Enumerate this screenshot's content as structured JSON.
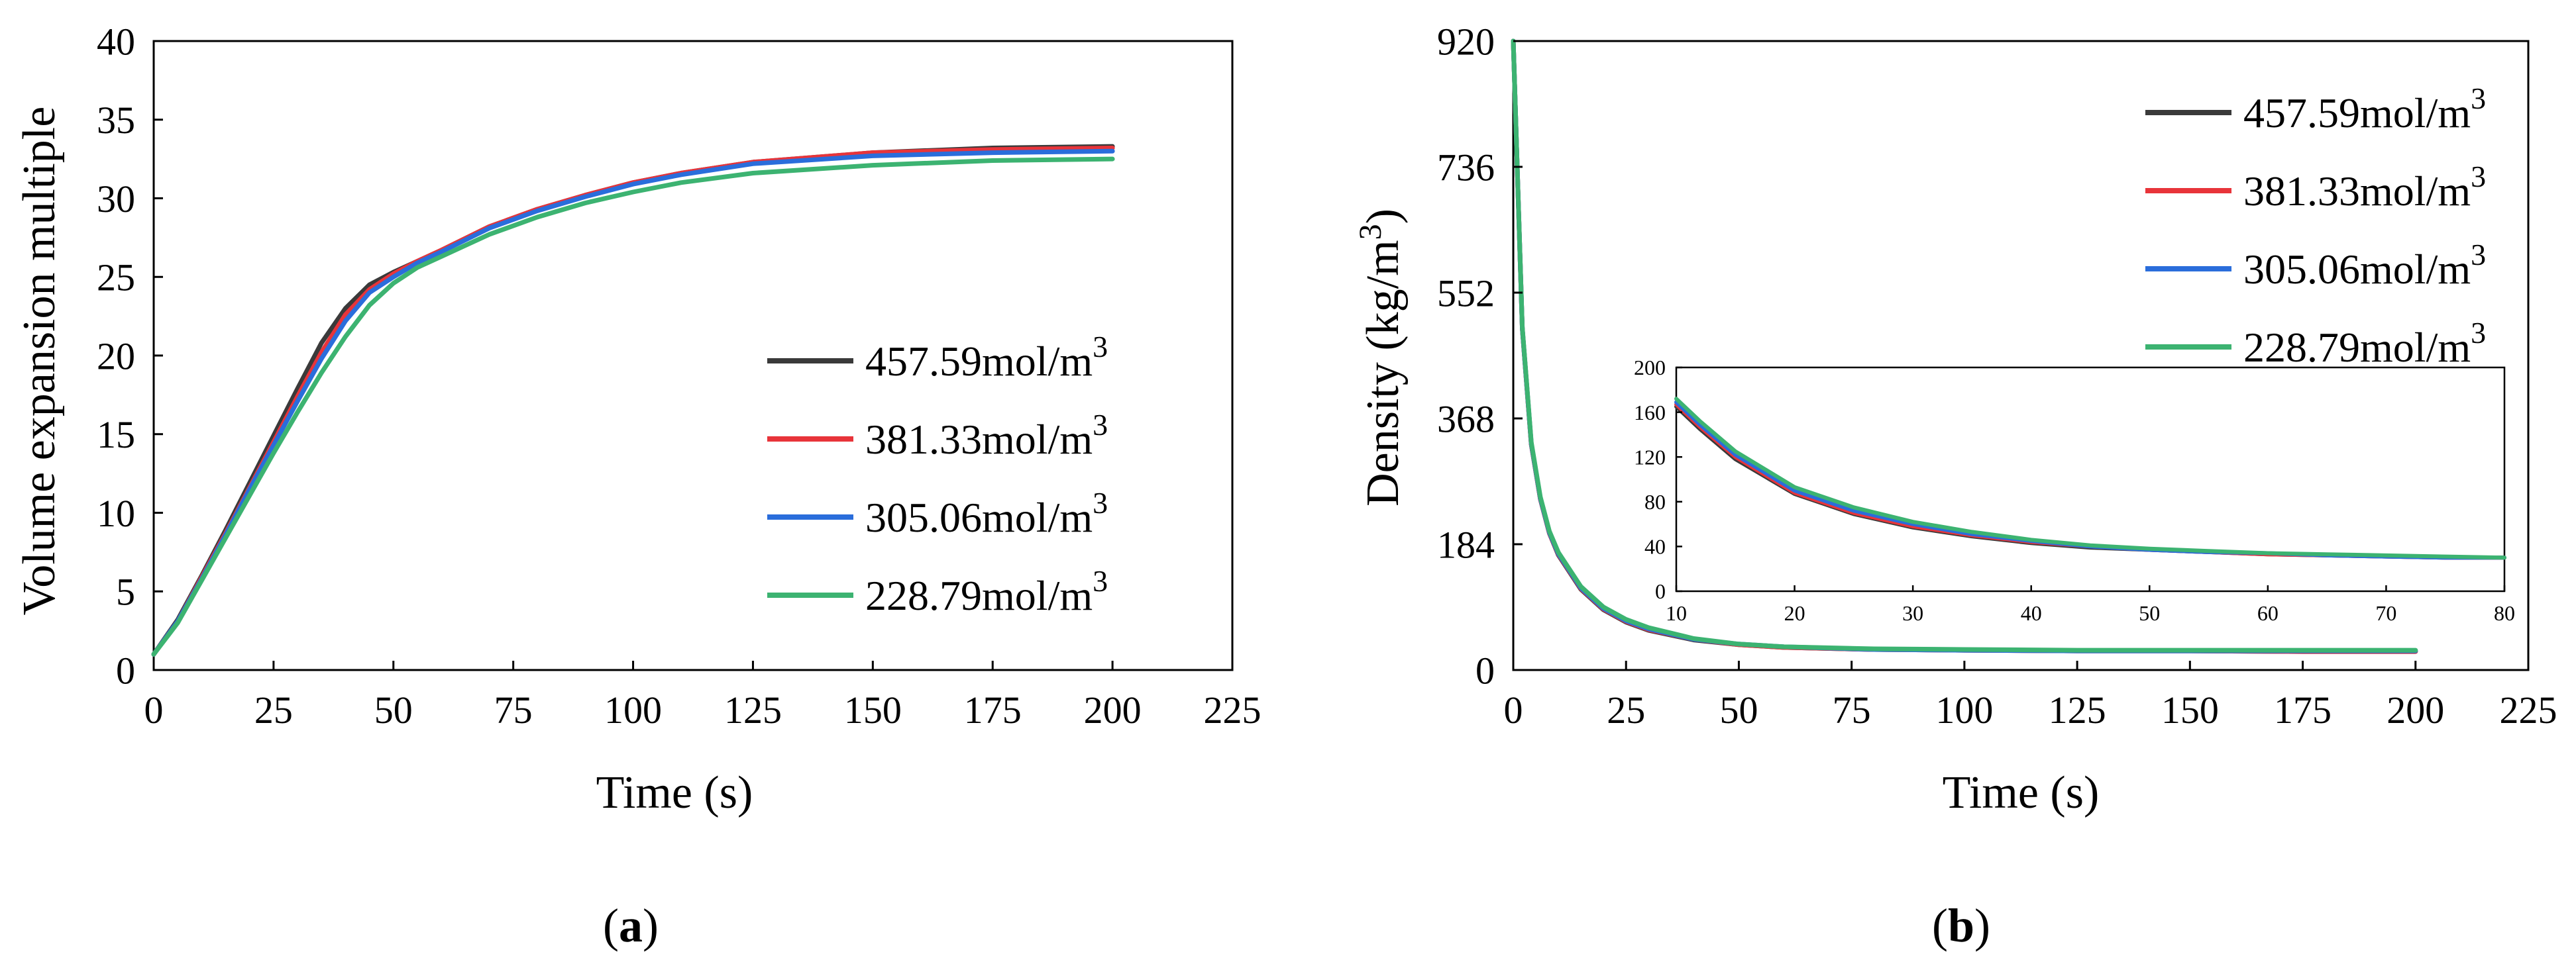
{
  "colors": {
    "457.59mol/m3": "#3a3a3a",
    "381.33mol/m3": "#e8343a",
    "305.06mol/m3": "#2a6ddb",
    "228.79mol/m3": "#3cb371"
  },
  "chart_data": [
    {
      "id": "a",
      "type": "line",
      "panel_label": "a",
      "title": "",
      "xlabel": "Time (s)",
      "ylabel": "Volume expansion multiple",
      "xlim": [
        0,
        225
      ],
      "ylim": [
        0,
        40
      ],
      "xticks": [
        0,
        25,
        50,
        75,
        100,
        125,
        150,
        175,
        200,
        225
      ],
      "yticks": [
        0,
        5,
        10,
        15,
        20,
        25,
        30,
        35,
        40
      ],
      "legend_position": "right-middle",
      "x": [
        0,
        5,
        10,
        15,
        20,
        25,
        30,
        35,
        40,
        45,
        50,
        55,
        60,
        70,
        80,
        90,
        100,
        110,
        125,
        150,
        175,
        200
      ],
      "series": [
        {
          "name": "457.59mol/m",
          "sup": "3",
          "color_key": "457.59mol/m3",
          "values": [
            1.0,
            3.2,
            6.0,
            8.9,
            11.9,
            14.9,
            17.9,
            20.8,
            23.0,
            24.5,
            25.3,
            26.0,
            26.7,
            28.2,
            29.3,
            30.2,
            31.0,
            31.6,
            32.3,
            32.9,
            33.2,
            33.3
          ]
        },
        {
          "name": "381.33mol/m",
          "sup": "3",
          "color_key": "381.33mol/m3",
          "values": [
            1.0,
            3.1,
            5.9,
            8.7,
            11.6,
            14.5,
            17.4,
            20.2,
            22.6,
            24.2,
            25.2,
            26.0,
            26.7,
            28.2,
            29.3,
            30.2,
            31.0,
            31.6,
            32.3,
            32.9,
            33.1,
            33.2
          ]
        },
        {
          "name": "305.06mol/m",
          "sup": "3",
          "color_key": "305.06mol/m3",
          "values": [
            1.0,
            3.1,
            5.8,
            8.6,
            11.5,
            14.3,
            17.1,
            19.8,
            22.2,
            24.0,
            25.0,
            25.9,
            26.6,
            28.1,
            29.2,
            30.1,
            30.9,
            31.5,
            32.2,
            32.7,
            32.9,
            33.0
          ]
        },
        {
          "name": "228.79mol/m",
          "sup": "3",
          "color_key": "228.79mol/m3",
          "values": [
            1.0,
            3.0,
            5.7,
            8.4,
            11.1,
            13.8,
            16.4,
            18.9,
            21.2,
            23.2,
            24.6,
            25.6,
            26.3,
            27.7,
            28.8,
            29.7,
            30.4,
            31.0,
            31.6,
            32.1,
            32.4,
            32.5
          ]
        }
      ]
    },
    {
      "id": "b",
      "type": "line",
      "panel_label": "b",
      "title": "",
      "xlabel": "Time (s)",
      "ylabel": "Density (kg/m",
      "ylabel_sup": "3",
      "ylabel_end": ")",
      "xlim": [
        0,
        225
      ],
      "ylim": [
        0,
        920
      ],
      "xticks": [
        0,
        25,
        50,
        75,
        100,
        125,
        150,
        175,
        200,
        225
      ],
      "yticks": [
        0,
        184,
        368,
        552,
        736,
        920
      ],
      "legend_position": "top-right",
      "x": [
        0,
        2,
        4,
        6,
        8,
        10,
        15,
        20,
        25,
        30,
        40,
        50,
        60,
        80,
        100,
        125,
        150,
        175,
        200
      ],
      "series": [
        {
          "name": "457.59mol/m",
          "sup": "3",
          "color_key": "457.59mol/m3",
          "values": [
            920,
            500,
            330,
            250,
            200,
            168,
            118,
            88,
            70,
            58,
            44,
            37,
            33,
            30,
            29,
            28,
            28,
            27,
            27
          ]
        },
        {
          "name": "381.33mol/m",
          "sup": "3",
          "color_key": "381.33mol/m3",
          "values": [
            920,
            500,
            330,
            250,
            200,
            169,
            119,
            89,
            71,
            59,
            45,
            37,
            33,
            30,
            29,
            28,
            28,
            27,
            27
          ]
        },
        {
          "name": "305.06mol/m",
          "sup": "3",
          "color_key": "305.06mol/m3",
          "values": [
            920,
            500,
            331,
            251,
            201,
            170,
            120,
            90,
            72,
            60,
            45,
            38,
            34,
            30,
            29,
            28,
            28,
            28,
            28
          ]
        },
        {
          "name": "228.79mol/m",
          "sup": "3",
          "color_key": "228.79mol/m3",
          "values": [
            920,
            502,
            333,
            253,
            203,
            172,
            122,
            92,
            74,
            62,
            46,
            38,
            34,
            31,
            30,
            29,
            29,
            29,
            29
          ]
        }
      ],
      "inset": {
        "xlim": [
          10,
          80
        ],
        "ylim": [
          0,
          200
        ],
        "xticks": [
          10,
          20,
          30,
          40,
          50,
          60,
          70,
          80
        ],
        "yticks": [
          0,
          40,
          80,
          120,
          160,
          200
        ],
        "x": [
          10,
          12,
          15,
          20,
          25,
          30,
          35,
          40,
          45,
          50,
          55,
          60,
          65,
          70,
          75,
          80
        ],
        "series": [
          {
            "color_key": "457.59mol/m3",
            "values": [
              165,
              145,
              118,
              87,
              69,
              57,
              49,
              43,
              39,
              37,
              35,
              33,
              32,
              31,
              30,
              30
            ]
          },
          {
            "color_key": "381.33mol/m3",
            "values": [
              167,
              147,
              120,
              88,
              70,
              58,
              50,
              44,
              40,
              37,
              35,
              33,
              32,
              31,
              30,
              30
            ]
          },
          {
            "color_key": "305.06mol/m3",
            "values": [
              169,
              149,
              122,
              90,
              72,
              60,
              51,
              45,
              40,
              37,
              35,
              34,
              32,
              31,
              30,
              30
            ]
          },
          {
            "color_key": "228.79mol/m3",
            "values": [
              172,
              152,
              125,
              93,
              75,
              62,
              53,
              46,
              41,
              38,
              36,
              34,
              33,
              32,
              31,
              30
            ]
          }
        ]
      }
    }
  ]
}
